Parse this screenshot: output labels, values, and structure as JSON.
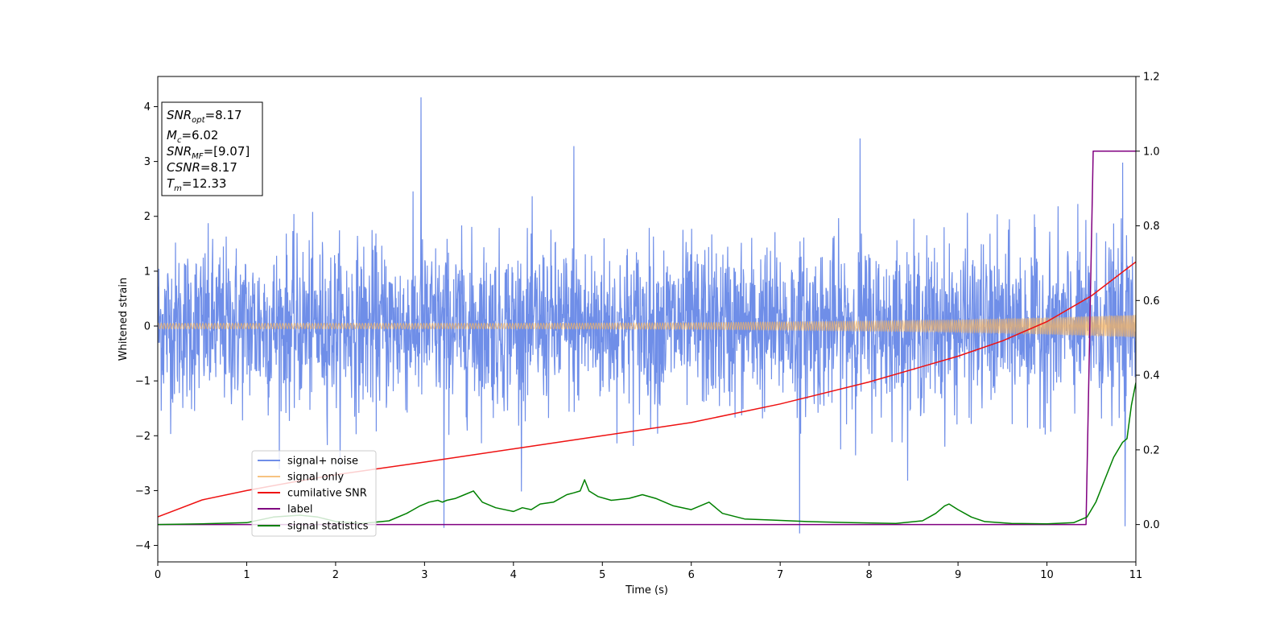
{
  "chart_data": {
    "type": "line",
    "xlabel": "Time (s)",
    "ylabel_left": "Whitened strain",
    "ylabel_right": "",
    "xlim": [
      0,
      11
    ],
    "ylim_left": [
      -4.3,
      4.55
    ],
    "ylim_right": [
      -0.1,
      1.2
    ],
    "x_ticks": [
      0,
      1,
      2,
      3,
      4,
      5,
      6,
      7,
      8,
      9,
      10,
      11
    ],
    "x_tick_labels": [
      "0",
      "1",
      "2",
      "3",
      "4",
      "5",
      "6",
      "7",
      "8",
      "9",
      "10",
      "11"
    ],
    "y_left_ticks": [
      4,
      3,
      2,
      1,
      0,
      -1,
      -2,
      -3,
      -4
    ],
    "y_left_tick_labels": [
      "4",
      "3",
      "2",
      "1",
      "0",
      "−1",
      "−2",
      "−3",
      "−4"
    ],
    "y_right_ticks": [
      1.2,
      1.0,
      0.8,
      0.6,
      0.4,
      0.2,
      0.0
    ],
    "y_right_tick_labels": [
      "1.2",
      "1.0",
      "0.8",
      "0.6",
      "0.4",
      "0.2",
      "0.0"
    ],
    "grid": false,
    "legend_placement": "lower-left",
    "annotation": [
      {
        "base": "SNR",
        "sub": "opt",
        "rest": "=8.17"
      },
      {
        "base": "M",
        "sub": "c",
        "rest": "=6.02"
      },
      {
        "base": "SNR",
        "sub": "MF",
        "rest": "=[9.07]"
      },
      {
        "base": "CSNR",
        "sub": "",
        "rest": "=8.17"
      },
      {
        "base": "T",
        "sub": "m",
        "rest": "=12.33"
      }
    ],
    "series": [
      {
        "name": "signal+ noise",
        "axis": "left",
        "color": "#6f8ee8",
        "kind": "noise",
        "sample_rate_hz": 256,
        "std": 0.75,
        "min": -3.8,
        "max": 4.17,
        "notable_points": [
          [
            2.96,
            4.17
          ],
          [
            7.9,
            3.42
          ],
          [
            4.68,
            3.28
          ],
          [
            10.85,
            2.98
          ],
          [
            3.22,
            -3.68
          ],
          [
            7.22,
            -3.78
          ],
          [
            10.88,
            -3.65
          ]
        ]
      },
      {
        "name": "signal only",
        "axis": "left",
        "color": "#f5b461",
        "kind": "chirp",
        "amplitude_envelope": [
          [
            0,
            0.05
          ],
          [
            2,
            0.05
          ],
          [
            4,
            0.05
          ],
          [
            6,
            0.06
          ],
          [
            8,
            0.09
          ],
          [
            9,
            0.11
          ],
          [
            10,
            0.15
          ],
          [
            11,
            0.2
          ]
        ]
      },
      {
        "name": "cumilative SNR",
        "axis": "left",
        "color": "#ee1111",
        "x": [
          0,
          0.5,
          1,
          1.5,
          2,
          3,
          4,
          5,
          6,
          7,
          8,
          9,
          9.5,
          10,
          10.5,
          11
        ],
        "y": [
          -3.48,
          -3.17,
          -3.0,
          -2.85,
          -2.71,
          -2.48,
          -2.24,
          -2.0,
          -1.76,
          -1.42,
          -1.02,
          -0.55,
          -0.27,
          0.08,
          0.55,
          1.17
        ]
      },
      {
        "name": "label",
        "axis": "right",
        "color": "#800080",
        "x": [
          0,
          10.44,
          10.52,
          11
        ],
        "y": [
          0.0,
          0.0,
          1.0,
          1.0
        ]
      },
      {
        "name": "signal statistics",
        "axis": "right",
        "color": "#008000",
        "x": [
          0,
          0.5,
          1.0,
          1.3,
          1.6,
          1.8,
          2.0,
          2.3,
          2.6,
          2.8,
          2.95,
          3.05,
          3.15,
          3.2,
          3.25,
          3.35,
          3.45,
          3.55,
          3.65,
          3.8,
          4.0,
          4.1,
          4.2,
          4.3,
          4.45,
          4.6,
          4.68,
          4.75,
          4.8,
          4.85,
          4.95,
          5.1,
          5.3,
          5.45,
          5.6,
          5.8,
          6.0,
          6.2,
          6.35,
          6.6,
          6.9,
          7.3,
          7.8,
          8.3,
          8.6,
          8.75,
          8.85,
          8.9,
          9.0,
          9.15,
          9.3,
          9.6,
          10.0,
          10.3,
          10.45,
          10.55,
          10.65,
          10.75,
          10.85,
          10.9,
          10.95,
          11.0
        ],
        "y": [
          0.0,
          0.002,
          0.005,
          0.02,
          0.025,
          0.02,
          0.008,
          0.003,
          0.01,
          0.03,
          0.05,
          0.06,
          0.065,
          0.06,
          0.065,
          0.07,
          0.08,
          0.09,
          0.06,
          0.045,
          0.035,
          0.045,
          0.04,
          0.055,
          0.06,
          0.08,
          0.085,
          0.09,
          0.12,
          0.09,
          0.075,
          0.065,
          0.07,
          0.08,
          0.07,
          0.05,
          0.04,
          0.06,
          0.03,
          0.015,
          0.012,
          0.008,
          0.005,
          0.003,
          0.01,
          0.03,
          0.05,
          0.055,
          0.04,
          0.02,
          0.008,
          0.003,
          0.002,
          0.005,
          0.02,
          0.06,
          0.12,
          0.18,
          0.22,
          0.23,
          0.32,
          0.38
        ]
      }
    ]
  }
}
